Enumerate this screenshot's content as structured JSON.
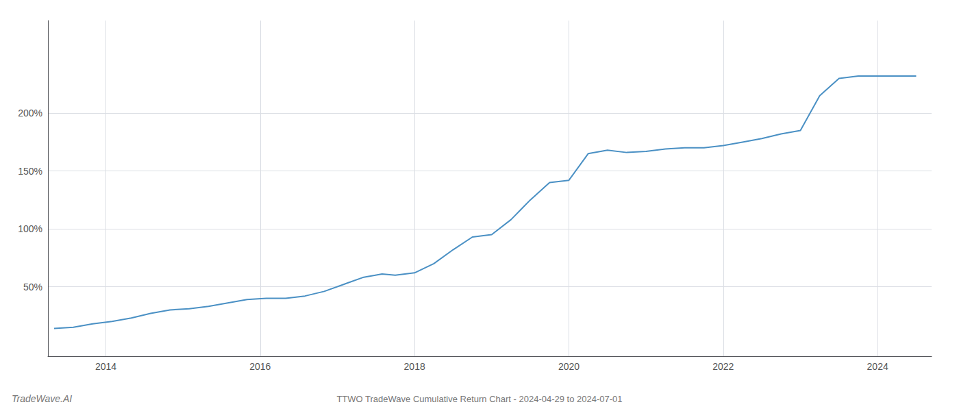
{
  "chart_data": {
    "type": "line",
    "title": "TTWO TradeWave Cumulative Return Chart - 2024-04-29 to 2024-07-01",
    "annotations": [
      "TradeWave.AI"
    ],
    "color": "#4a90c4",
    "x": [
      2013.33,
      2013.58,
      2013.83,
      2014.08,
      2014.33,
      2014.58,
      2014.83,
      2015.08,
      2015.33,
      2015.58,
      2015.83,
      2016.08,
      2016.33,
      2016.58,
      2016.83,
      2017.08,
      2017.33,
      2017.58,
      2017.75,
      2018.0,
      2018.25,
      2018.5,
      2018.75,
      2019.0,
      2019.25,
      2019.5,
      2019.75,
      2020.0,
      2020.25,
      2020.5,
      2020.75,
      2021.0,
      2021.25,
      2021.5,
      2021.75,
      2022.0,
      2022.25,
      2022.5,
      2022.75,
      2023.0,
      2023.25,
      2023.5,
      2023.75,
      2024.0,
      2024.25,
      2024.5
    ],
    "values": [
      14,
      15,
      18,
      20,
      23,
      27,
      30,
      31,
      33,
      36,
      39,
      40,
      40,
      42,
      46,
      52,
      58,
      61,
      60,
      62,
      70,
      82,
      93,
      95,
      108,
      125,
      140,
      142,
      165,
      168,
      166,
      167,
      169,
      170,
      170,
      172,
      175,
      178,
      182,
      185,
      215,
      230,
      232,
      232,
      232,
      232
    ],
    "xlim": [
      2013.25,
      2024.7
    ],
    "xticks": [
      2014,
      2016,
      2018,
      2020,
      2022,
      2024
    ],
    "ylim": [
      -10,
      280
    ],
    "yticks": [
      {
        "value": 50,
        "label": "50%"
      },
      {
        "value": 100,
        "label": "100%"
      },
      {
        "value": 150,
        "label": "150%"
      },
      {
        "value": 200,
        "label": "200%"
      }
    ],
    "grid": true
  }
}
